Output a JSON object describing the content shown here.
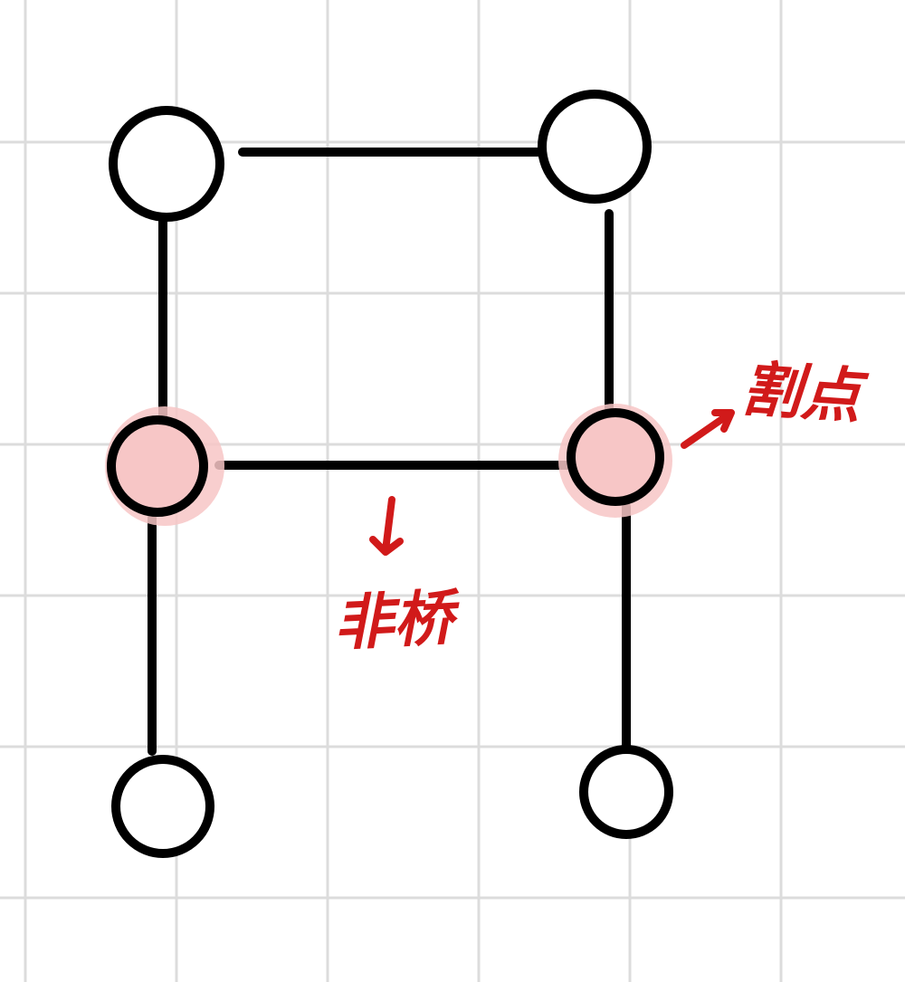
{
  "colors": {
    "background": "#ffffff",
    "grid": "#dcdcdc",
    "edge": "#000000",
    "node_fill": "#ffffff",
    "highlight_fill": "#f7c6c6",
    "annotation": "#d11a1a"
  },
  "nodes": [
    {
      "id": "top-left",
      "highlighted": false
    },
    {
      "id": "top-right",
      "highlighted": false
    },
    {
      "id": "middle-left",
      "highlighted": true
    },
    {
      "id": "middle-right",
      "highlighted": true
    },
    {
      "id": "bottom-left",
      "highlighted": false
    },
    {
      "id": "bottom-right",
      "highlighted": false
    }
  ],
  "edges": [
    {
      "from": "top-left",
      "to": "top-right"
    },
    {
      "from": "top-left",
      "to": "middle-left"
    },
    {
      "from": "top-right",
      "to": "middle-right"
    },
    {
      "from": "middle-left",
      "to": "middle-right",
      "label": "non-bridge"
    },
    {
      "from": "middle-left",
      "to": "bottom-left"
    },
    {
      "from": "middle-right",
      "to": "bottom-right"
    }
  ],
  "annotations": {
    "cut_vertex_label": "割点",
    "non_bridge_label": "非桥"
  }
}
